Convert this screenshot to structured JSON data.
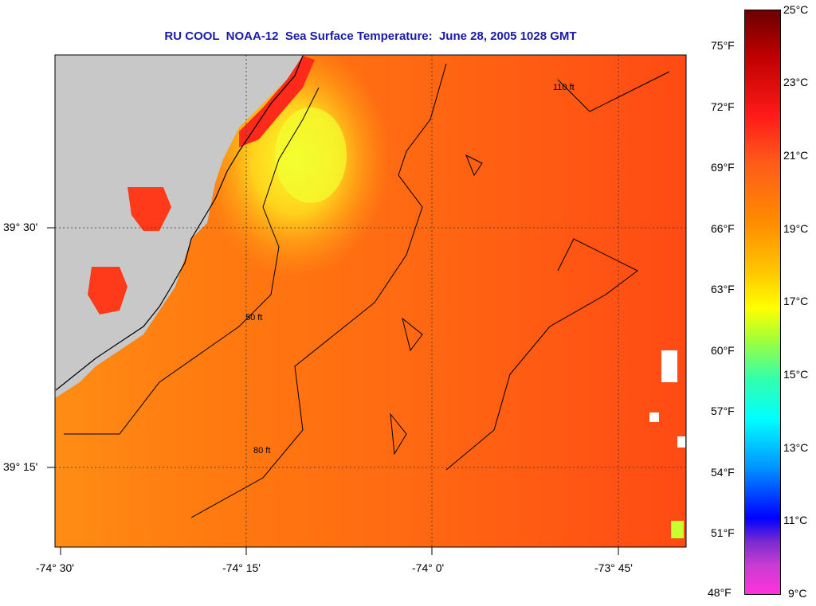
{
  "title": "RU COOL  NOAA-12  Sea Surface Temperature:  June 28, 2005 1028 GMT",
  "axes": {
    "x_ticks": [
      "-74° 30'",
      "-74° 15'",
      "-74° 0'",
      "-73° 45'"
    ],
    "y_ticks": [
      "39° 30'",
      "39° 15'"
    ]
  },
  "contours": {
    "labels": [
      "110 ft",
      "80 ft",
      "50 ft"
    ]
  },
  "colorbar": {
    "fahrenheit": [
      "75°F",
      "72°F",
      "69°F",
      "66°F",
      "63°F",
      "60°F",
      "57°F",
      "54°F",
      "51°F",
      "48°F"
    ],
    "celsius": [
      "25°C",
      "23°C",
      "21°C",
      "19°C",
      "17°C",
      "15°C",
      "13°C",
      "11°C",
      "9°C"
    ]
  },
  "colors": {
    "land": "#c8c8c8",
    "warm": "#ff6a10",
    "title": "#1a1aa6"
  }
}
